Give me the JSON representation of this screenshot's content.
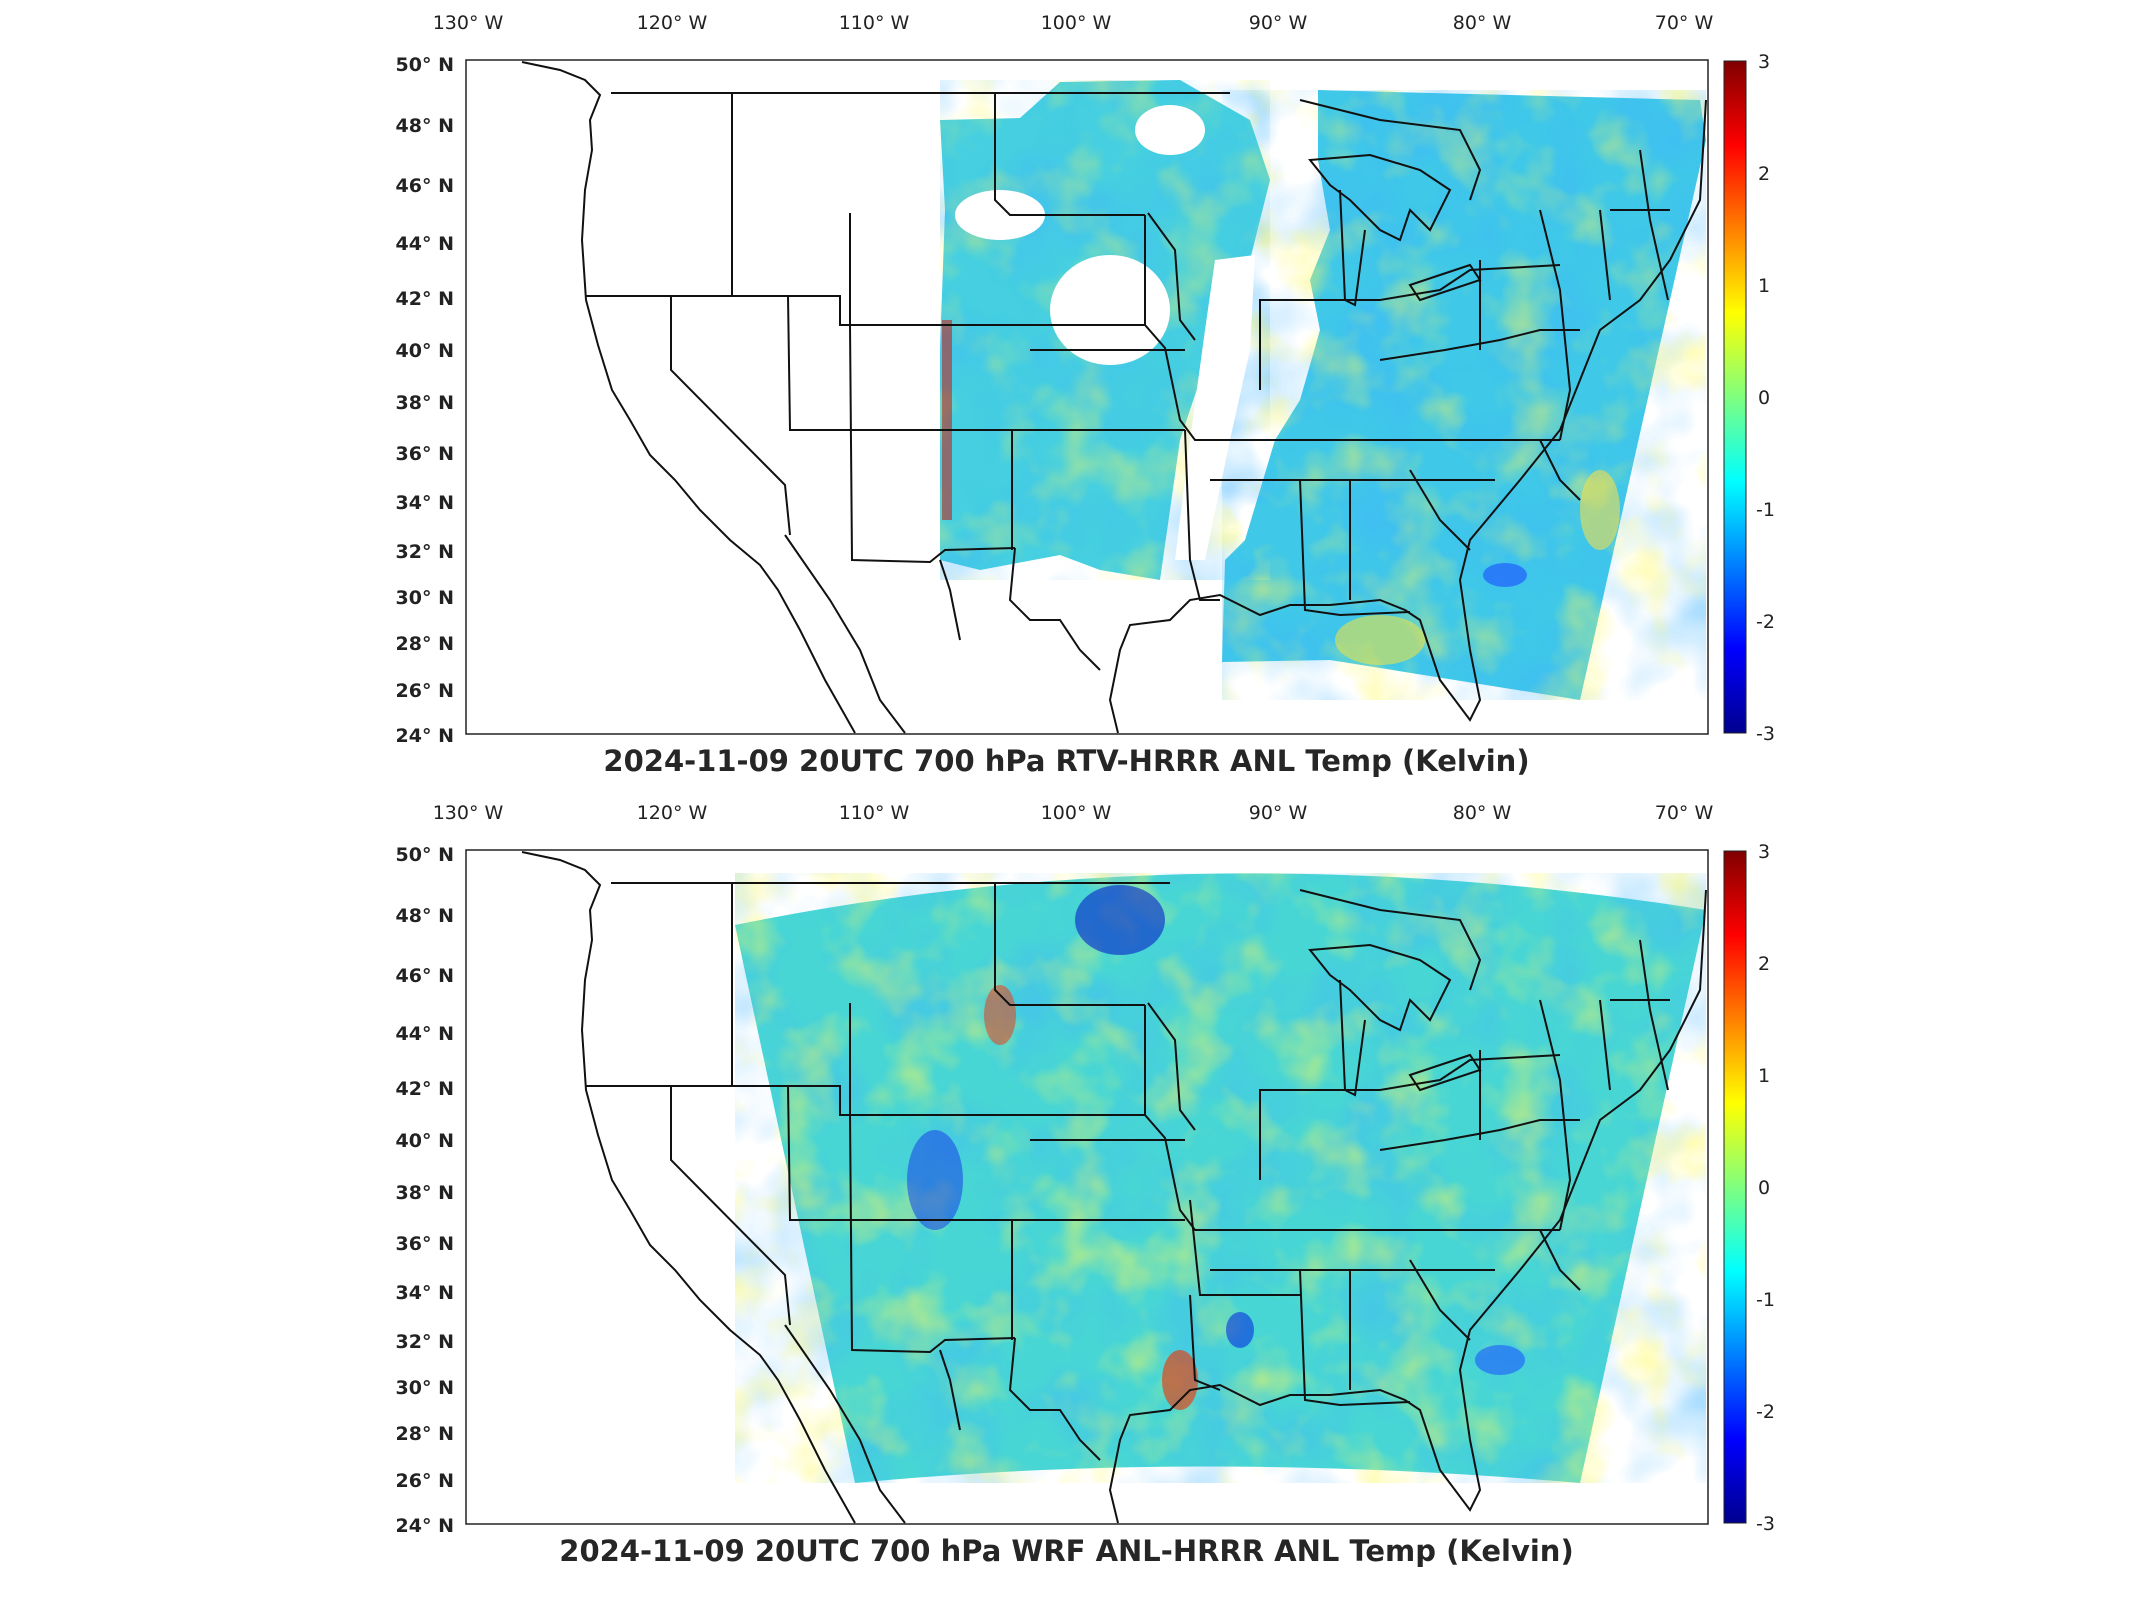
{
  "maps": [
    {
      "title": "2024-11-09 20UTC 700 hPa RTV-HRRR ANL Temp (Kelvin)",
      "lon_labels": [
        "130° W",
        "120° W",
        "110° W",
        "100° W",
        "90° W",
        "80° W",
        "70° W"
      ],
      "lat_labels": [
        "50° N",
        "48° N",
        "46° N",
        "44° N",
        "42° N",
        "40° N",
        "38° N",
        "36° N",
        "34° N",
        "32° N",
        "30° N",
        "28° N",
        "26° N",
        "24° N"
      ],
      "colorbar_ticks": [
        "3",
        "2",
        "1",
        "0",
        "-1",
        "-2",
        "-3"
      ],
      "colorbar_range": [
        -3,
        3
      ],
      "colormap": "jet"
    },
    {
      "title": "2024-11-09 20UTC 700 hPa WRF ANL-HRRR ANL Temp (Kelvin)",
      "lon_labels": [
        "130° W",
        "120° W",
        "110° W",
        "100° W",
        "90° W",
        "80° W",
        "70° W"
      ],
      "lat_labels": [
        "50° N",
        "48° N",
        "46° N",
        "44° N",
        "42° N",
        "40° N",
        "38° N",
        "36° N",
        "34° N",
        "32° N",
        "30° N",
        "28° N",
        "26° N",
        "24° N"
      ],
      "colorbar_ticks": [
        "3",
        "2",
        "1",
        "0",
        "-1",
        "-2",
        "-3"
      ],
      "colorbar_range": [
        -3,
        3
      ],
      "colormap": "jet"
    }
  ],
  "colors": {
    "field_base": "#55d8c8",
    "jet_low": "#00008f",
    "jet_mid": "#7fff7f",
    "jet_high": "#800000"
  }
}
